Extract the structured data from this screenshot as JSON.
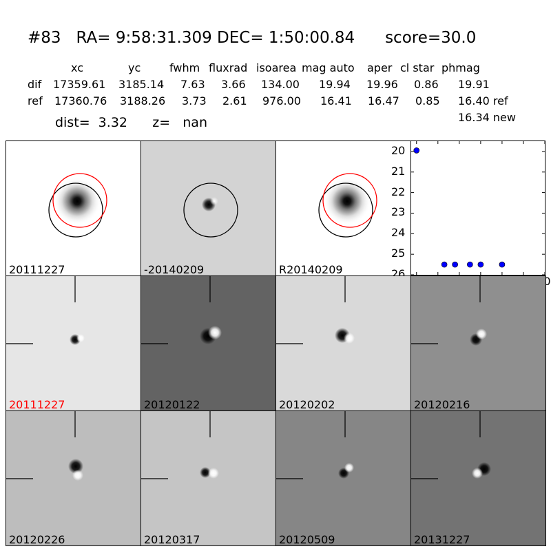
{
  "candidate": {
    "id": "#83",
    "ra_label": "RA= 9:58:31.309",
    "dec_label": "DEC= 1:50:00.84",
    "score_label": "score=30.0"
  },
  "table": {
    "headers": [
      "xc",
      "yc",
      "fwhm",
      "fluxrad",
      "isoarea",
      "mag auto",
      "aper",
      "cl star",
      "phmag"
    ],
    "rows": [
      {
        "label": "dif",
        "values": [
          "17359.61",
          "3185.14",
          "7.63",
          "3.66",
          "134.00",
          "19.94",
          "19.96",
          "0.86",
          "19.91"
        ]
      },
      {
        "label": "ref",
        "values": [
          "17360.76",
          "3188.26",
          "3.73",
          "2.61",
          "976.00",
          "16.41",
          "16.47",
          "0.85",
          "16.40 ref"
        ]
      }
    ],
    "extra": "16.34 new"
  },
  "dist_label": "dist=  3.32",
  "z_label": "z=   nan",
  "top_panels": [
    {
      "label": "20111227",
      "bg": "#ffffff",
      "circles": [
        "black",
        "red"
      ]
    },
    {
      "label": "-20140209",
      "bg": "#d3d3d3",
      "circles": [
        "black"
      ]
    },
    {
      "label": "R20140209",
      "bg": "#ffffff",
      "circles": [
        "black",
        "red"
      ]
    }
  ],
  "stamps": [
    {
      "label": "20111227",
      "bg": "#e6e6e6",
      "label_color": "#ff0000"
    },
    {
      "label": "20120122",
      "bg": "#636363",
      "label_color": "#000000"
    },
    {
      "label": "20120202",
      "bg": "#d9d9d9",
      "label_color": "#000000"
    },
    {
      "label": "20120216",
      "bg": "#8f8f8f",
      "label_color": "#000000"
    },
    {
      "label": "20120226",
      "bg": "#bdbdbd",
      "label_color": "#000000"
    },
    {
      "label": "20120317",
      "bg": "#c5c5c5",
      "label_color": "#000000"
    },
    {
      "label": "20120509",
      "bg": "#868686",
      "label_color": "#000000"
    },
    {
      "label": "20131227",
      "bg": "#737373",
      "label_color": "#000000"
    }
  ],
  "chart_data": {
    "type": "scatter",
    "x": [
      0,
      26,
      36,
      50,
      60,
      80
    ],
    "y": [
      19.95,
      25.5,
      25.5,
      25.5,
      25.5,
      25.5
    ],
    "xlim": [
      -5,
      120
    ],
    "ylim": [
      26,
      19.5
    ],
    "xticks": [
      "0",
      "20",
      "40",
      "60",
      "80",
      "100",
      "120"
    ],
    "yticks": [
      "20",
      "21",
      "22",
      "23",
      "24",
      "25",
      "26"
    ],
    "color": "#0000ff"
  }
}
